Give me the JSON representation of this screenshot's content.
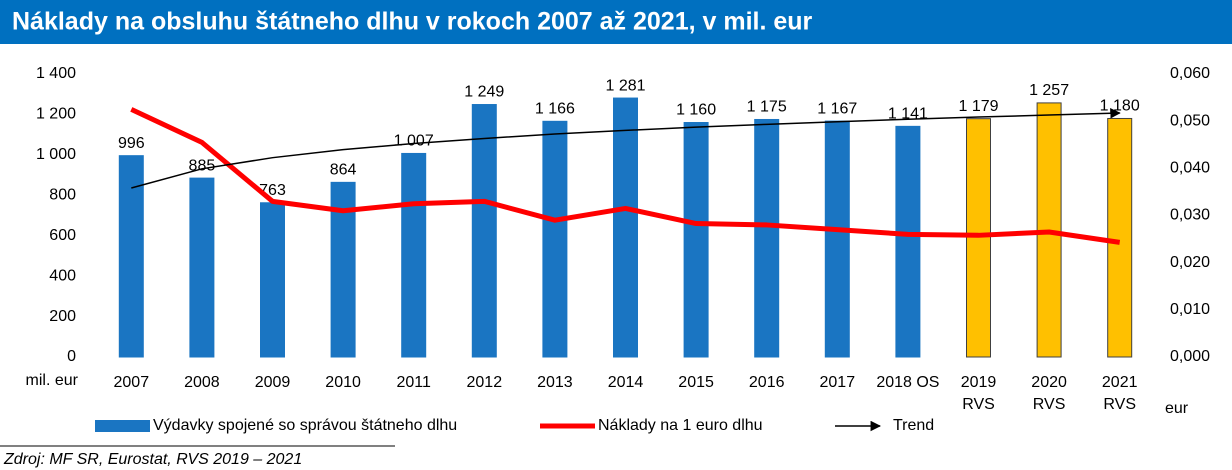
{
  "chart_data": {
    "type": "bar",
    "title": "Náklady na obsluhu štátneho dlhu v rokoch 2007 až 2021, v mil. eur",
    "categories": [
      "2007",
      "2008",
      "2009",
      "2010",
      "2011",
      "2012",
      "2013",
      "2014",
      "2015",
      "2016",
      "2017",
      "2018 OS",
      "2019\nRVS",
      "2020\nRVS",
      "2021\nRVS"
    ],
    "series": [
      {
        "name": "Výdavky spojené so správou štátneho dlhu",
        "type": "bar",
        "color": "#1a75c2",
        "colors": [
          "#1a75c2",
          "#1a75c2",
          "#1a75c2",
          "#1a75c2",
          "#1a75c2",
          "#1a75c2",
          "#1a75c2",
          "#1a75c2",
          "#1a75c2",
          "#1a75c2",
          "#1a75c2",
          "#1a75c2",
          "#ffc000",
          "#ffc000",
          "#ffc000"
        ],
        "edgecolors": [
          "#1a75c2",
          "#1a75c2",
          "#1a75c2",
          "#1a75c2",
          "#1a75c2",
          "#1a75c2",
          "#1a75c2",
          "#1a75c2",
          "#1a75c2",
          "#1a75c2",
          "#1a75c2",
          "#1a75c2",
          "#404040",
          "#404040",
          "#404040"
        ],
        "values": [
          996,
          885,
          763,
          864,
          1007,
          1249,
          1166,
          1281,
          1160,
          1175,
          1167,
          1141,
          1179,
          1257,
          1180
        ],
        "value_labels": [
          "996",
          "885",
          "763",
          "864",
          "1 007",
          "1 249",
          "1 166",
          "1 281",
          "1 160",
          "1 175",
          "1 167",
          "1 141",
          "1 179",
          "1 257",
          "1 180"
        ]
      },
      {
        "name": "Náklady na 1 euro dlhu",
        "type": "line",
        "axis": "y2",
        "color": "#ff0000",
        "values": [
          0.0525,
          0.0455,
          0.033,
          0.031,
          0.0325,
          0.033,
          0.029,
          0.0315,
          0.0283,
          0.028,
          0.027,
          0.026,
          0.0258,
          0.0265,
          0.0243
        ]
      },
      {
        "name": "Trend",
        "type": "trend",
        "color": "#000000",
        "values": [
          836,
          931,
          986,
          1026,
          1056,
          1081,
          1103,
          1121,
          1137,
          1151,
          1164,
          1176,
          1187,
          1197,
          1207
        ]
      }
    ],
    "ylim": [
      0,
      1400
    ],
    "yticks": [
      0,
      200,
      400,
      600,
      800,
      {
        "value": 1000,
        "label": "1 000"
      },
      {
        "value": 1200,
        "label": "1 200"
      },
      {
        "value": 1400,
        "label": "1 400"
      }
    ],
    "y2lim": [
      0,
      0.06
    ],
    "y2ticks": [
      {
        "value": 0,
        "label": "0,000"
      },
      {
        "value": 0.01,
        "label": "0,010"
      },
      {
        "value": 0.02,
        "label": "0,020"
      },
      {
        "value": 0.03,
        "label": "0,030"
      },
      {
        "value": 0.04,
        "label": "0,040"
      },
      {
        "value": 0.05,
        "label": "0,050"
      },
      {
        "value": 0.06,
        "label": "0,060"
      }
    ],
    "ylabel": "mil. eur",
    "y2label": "eur",
    "source": "Zdroj: MF SR, Eurostat, RVS 2019 – 2021"
  }
}
